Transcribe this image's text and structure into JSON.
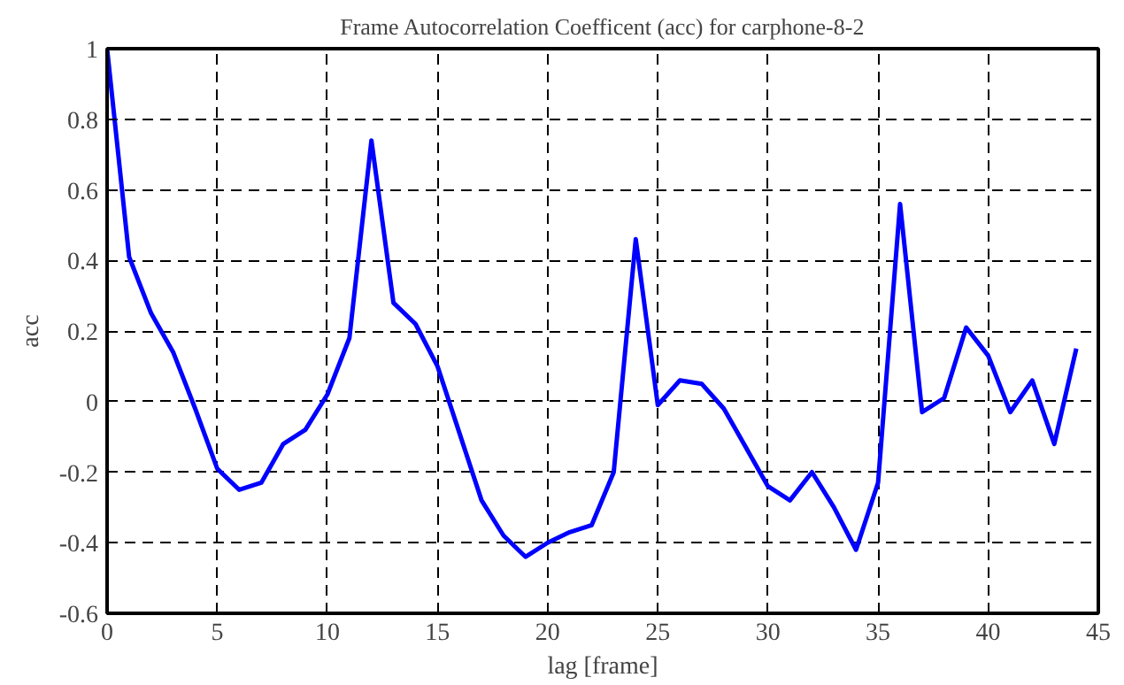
{
  "chart_data": {
    "type": "line",
    "title": "Frame Autocorrelation Coefficent (acc) for carphone-8-2",
    "xlabel": "lag [frame]",
    "ylabel": "acc",
    "x": [
      0,
      1,
      2,
      3,
      4,
      5,
      6,
      7,
      8,
      9,
      10,
      11,
      12,
      13,
      14,
      15,
      16,
      17,
      18,
      19,
      20,
      21,
      22,
      23,
      24,
      25,
      26,
      27,
      28,
      29,
      30,
      31,
      32,
      33,
      34,
      35,
      36,
      37,
      38,
      39,
      40,
      41,
      42,
      43,
      44
    ],
    "series": [
      {
        "color": "#0000ff",
        "values": [
          1,
          0.41,
          0.25,
          0.14,
          -0.02,
          -0.19,
          -0.25,
          -0.23,
          -0.12,
          -0.08,
          0.02,
          0.18,
          0.74,
          0.28,
          0.22,
          0.1,
          -0.09,
          -0.28,
          -0.38,
          -0.44,
          -0.4,
          -0.37,
          -0.35,
          -0.2,
          0.46,
          -0.01,
          0.06,
          0.05,
          -0.02,
          -0.13,
          -0.24,
          -0.28,
          -0.2,
          -0.3,
          -0.42,
          -0.23,
          0.56,
          -0.03,
          0.01,
          0.21,
          0.13,
          -0.03,
          0.06,
          -0.12,
          0.15
        ]
      }
    ],
    "xlim": [
      0,
      45
    ],
    "ylim": [
      -0.6,
      1
    ],
    "xticks": [
      0,
      5,
      10,
      15,
      20,
      25,
      30,
      35,
      40,
      45
    ],
    "yticks": [
      -0.6,
      -0.4,
      -0.2,
      0,
      0.2,
      0.4,
      0.6,
      0.8,
      1
    ],
    "grid": true,
    "line_style": "solid"
  }
}
